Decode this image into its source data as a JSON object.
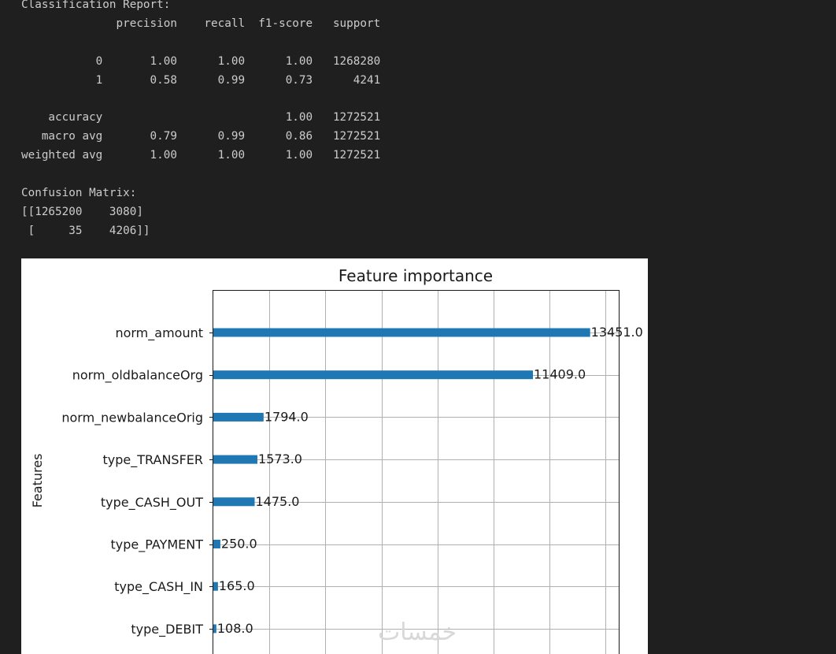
{
  "console": {
    "lines": [
      "Classification Report:",
      "              precision    recall  f1-score   support",
      "",
      "           0       1.00      1.00      1.00   1268280",
      "           1       0.58      0.99      0.73      4241",
      "",
      "    accuracy                           1.00   1272521",
      "   macro avg       0.79      0.99      0.86   1272521",
      "weighted avg       1.00      1.00      1.00   1272521",
      "",
      "Confusion Matrix:",
      "[[1265200    3080]",
      " [     35    4206]]"
    ]
  },
  "chart_data": {
    "type": "bar",
    "orientation": "horizontal",
    "title": "Feature importance",
    "xlabel": "",
    "ylabel": "Features",
    "grid": true,
    "xlim": [
      0,
      14500
    ],
    "categories": [
      "norm_amount",
      "norm_oldbalanceOrg",
      "norm_newbalanceOrig",
      "type_TRANSFER",
      "type_CASH_OUT",
      "type_PAYMENT",
      "type_CASH_IN",
      "type_DEBIT"
    ],
    "values": [
      13451.0,
      11409.0,
      1794.0,
      1573.0,
      1475.0,
      250.0,
      165.0,
      108.0
    ],
    "value_labels": [
      "13451.0",
      "11409.0",
      "1794.0",
      "1573.0",
      "1475.0",
      "250.0",
      "165.0",
      "108.0"
    ],
    "bar_color": "#1f77b4"
  },
  "watermark": {
    "text": "خمسات"
  }
}
